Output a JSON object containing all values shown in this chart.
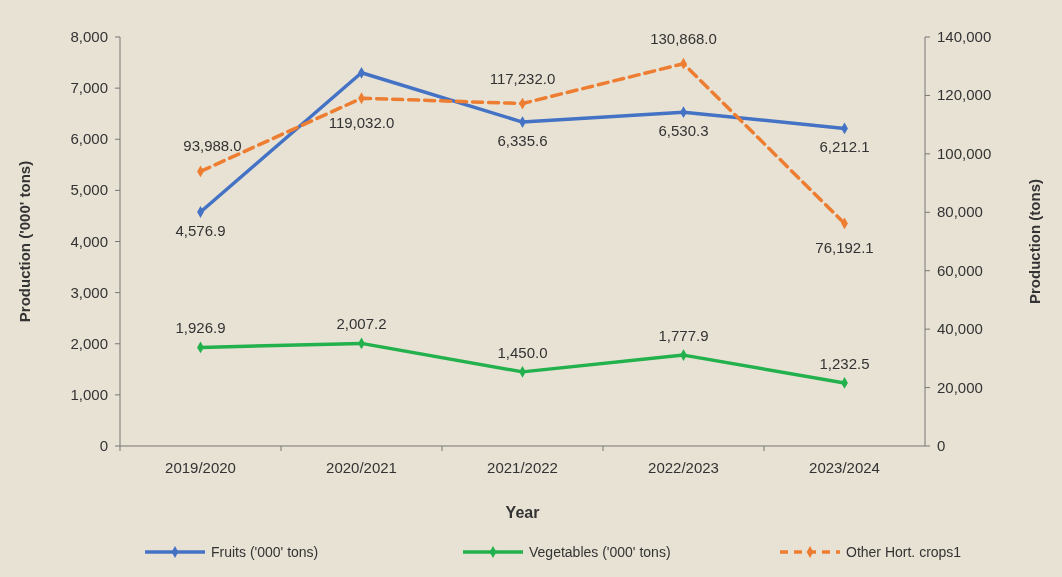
{
  "chart_data": {
    "type": "line",
    "xlabel": "Year",
    "ylabel": "Production ('000' tons)",
    "y2label": "Production (tons)",
    "categories": [
      "2019/2020",
      "2020/2021",
      "2021/2022",
      "2022/2023",
      "2023/2024"
    ],
    "series": [
      {
        "name": "Fruits ('000' tons)",
        "color": "#4472c4",
        "values": [
          4576.9,
          7300,
          6335.6,
          6530.3,
          6212.1
        ],
        "value_labels": [
          "4,576.9",
          null,
          "6,335.6",
          "6,530.3",
          "6,212.1"
        ],
        "line_style": "solid"
      },
      {
        "name": "Vegetables ('000' tons)",
        "color": "#22b14c",
        "values": [
          1926.9,
          2007.2,
          1450.0,
          1777.9,
          1232.5
        ],
        "value_labels": [
          "1,926.9",
          "2,007.2",
          "1,450.0",
          "1,777.9",
          "1,232.5"
        ],
        "line_style": "solid"
      },
      {
        "name": "Other Hort. crops1",
        "color": "#ed7d31",
        "axis": "y2",
        "values": [
          93988.0,
          119032.0,
          117232.0,
          130868.0,
          76192.1
        ],
        "value_labels": [
          "93,988.0",
          "119,032.0",
          "117,232.0",
          "130,868.0",
          "76,192.1"
        ],
        "line_style": "dashed"
      }
    ],
    "ylim": [
      0,
      8000
    ],
    "yticks": [
      {
        "value": 0,
        "label": "0"
      },
      {
        "value": 1000,
        "label": "1,000"
      },
      {
        "value": 2000,
        "label": "2,000"
      },
      {
        "value": 3000,
        "label": "3,000"
      },
      {
        "value": 4000,
        "label": "4,000"
      },
      {
        "value": 5000,
        "label": "5,000"
      },
      {
        "value": 6000,
        "label": "6,000"
      },
      {
        "value": 7000,
        "label": "7,000"
      },
      {
        "value": 8000,
        "label": "8,000"
      }
    ],
    "y2lim": [
      0,
      140000
    ],
    "y2ticks": [
      {
        "value": 0,
        "label": "0"
      },
      {
        "value": 20000,
        "label": "20,000"
      },
      {
        "value": 40000,
        "label": "40,000"
      },
      {
        "value": 60000,
        "label": "60,000"
      },
      {
        "value": 80000,
        "label": "80,000"
      },
      {
        "value": 100000,
        "label": "100,000"
      },
      {
        "value": 120000,
        "label": "120,000"
      },
      {
        "value": 140000,
        "label": "140,000"
      }
    ],
    "marker": "diamond",
    "legend": "bottom",
    "grid": false
  }
}
